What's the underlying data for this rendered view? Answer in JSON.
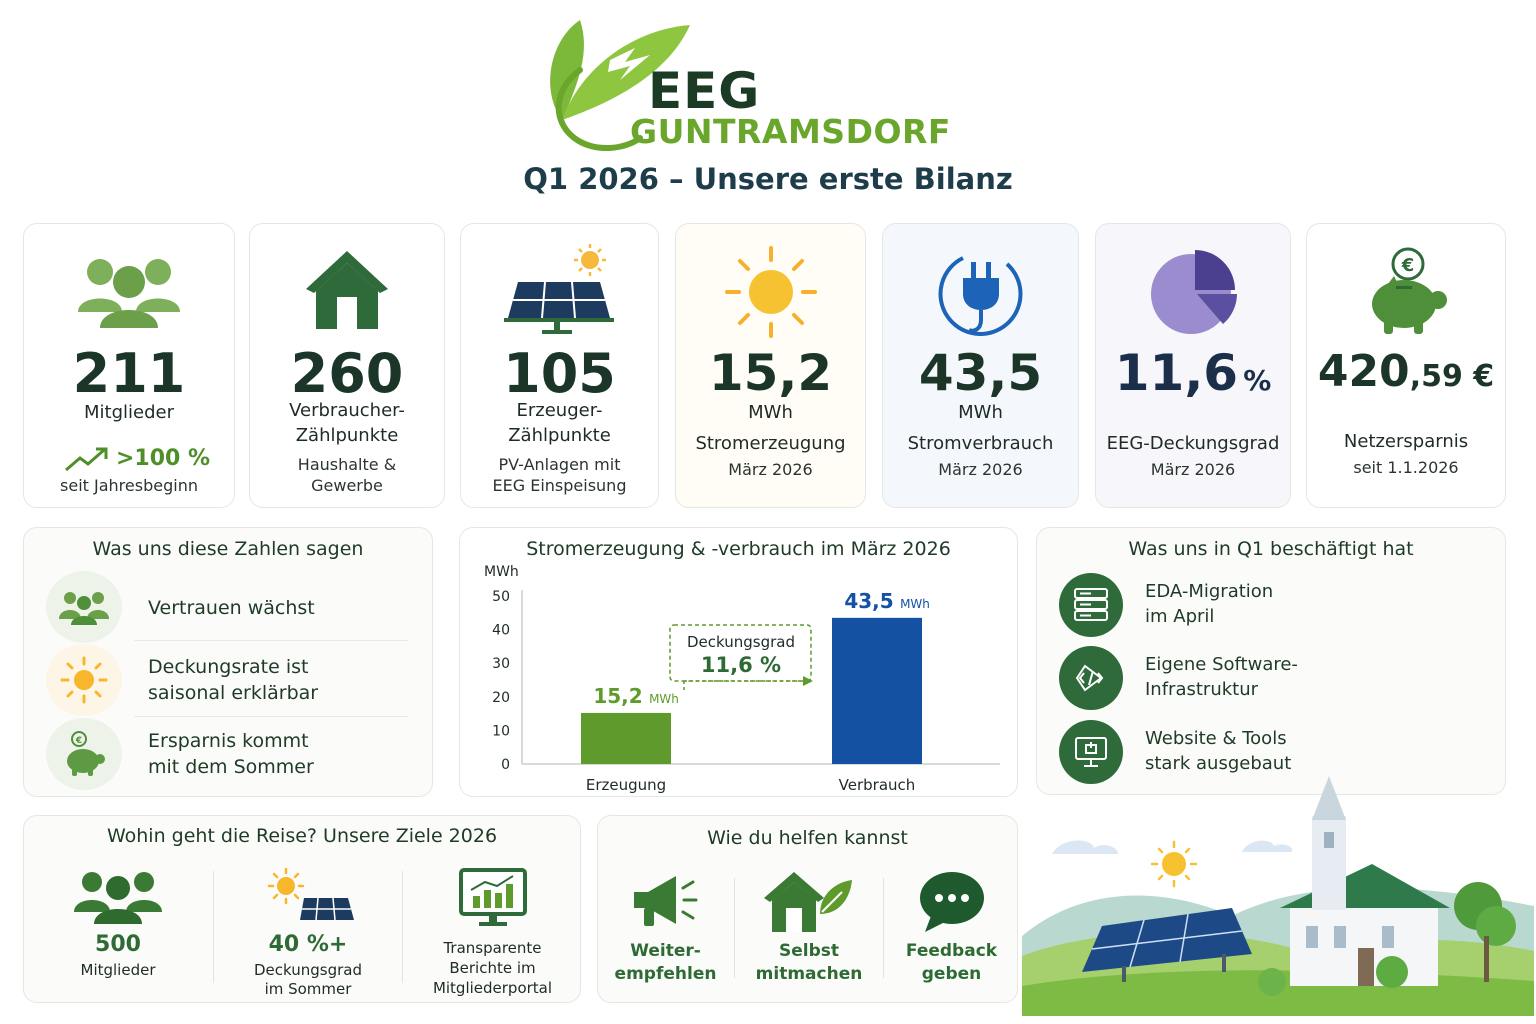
{
  "header": {
    "logo_line1": "EEG",
    "logo_line2": "GUNTRAMSDORF",
    "subtitle": "Q1 2026 – Unsere erste Bilanz"
  },
  "kpis": [
    {
      "icon": "people-icon",
      "value": "211",
      "label": "Mitglieder",
      "growth": ">100 %",
      "sub": "seit Jahresbeginn"
    },
    {
      "icon": "house-icon",
      "value": "260",
      "label_1": "Verbraucher-",
      "label_2": "Zählpunkte",
      "sub_1": "Haushalte &",
      "sub_2": "Gewerbe"
    },
    {
      "icon": "solar-panel-icon",
      "value": "105",
      "label_1": "Erzeuger-",
      "label_2": "Zählpunkte",
      "sub_1": "PV-Anlagen mit",
      "sub_2": "EEG Einspeisung"
    },
    {
      "icon": "sun-icon",
      "value": "15,2",
      "unit": "MWh",
      "label": "Stromerzeugung",
      "sub": "März 2026"
    },
    {
      "icon": "plug-icon",
      "value": "43,5",
      "unit": "MWh",
      "label": "Stromverbrauch",
      "sub": "März 2026"
    },
    {
      "icon": "pie-icon",
      "value": "11,6",
      "unit": "%",
      "label": "EEG-Deckungsgrad",
      "sub": "März 2026"
    },
    {
      "icon": "piggy-bank-icon",
      "value": "420",
      "decimals": ",59 €",
      "label": "Netzersparnis",
      "sub": "seit 1.1.2026"
    }
  ],
  "insights": {
    "title": "Was uns diese Zahlen sagen",
    "items": [
      {
        "icon": "people-icon",
        "line1": "Vertrauen wächst",
        "line2": ""
      },
      {
        "icon": "sun-icon",
        "line1": "Deckungsrate ist",
        "line2": "saisonal erklärbar"
      },
      {
        "icon": "piggy-bank-icon",
        "line1": "Ersparnis kommt",
        "line2": "mit dem Sommer"
      }
    ]
  },
  "chart": {
    "title": "Stromerzeugung &  -verbrauch im März 2026",
    "annotation_label": "Deckungsgrad",
    "annotation_value": "11,6 %",
    "bar_unit": "MWh",
    "bar1_label": "15,2",
    "bar2_label": "43,5",
    "colors": {
      "erzeugung": "#5e9a2c",
      "verbrauch": "#1451a3"
    }
  },
  "chart_data": {
    "type": "bar",
    "title": "Stromerzeugung &  -verbrauch im März 2026",
    "categories": [
      "Erzeugung",
      "Verbrauch"
    ],
    "values": [
      15.2,
      43.5
    ],
    "ylabel": "MWh",
    "ylim": [
      0,
      50
    ],
    "yticks": [
      "0",
      "10",
      "20",
      "30",
      "40",
      "50"
    ],
    "grid": false,
    "legend": "none"
  },
  "topics": {
    "title": "Was uns in Q1 beschäftigt hat",
    "items": [
      {
        "icon": "server-icon",
        "line1": "EDA-Migration",
        "line2": "im April"
      },
      {
        "icon": "code-icon",
        "line1": "Eigene Software-",
        "line2": "Infrastruktur"
      },
      {
        "icon": "monitor-icon",
        "line1": "Website & Tools",
        "line2": "stark ausgebaut"
      }
    ]
  },
  "goals": {
    "title": "Wohin geht die Reise? Unsere Ziele 2026",
    "items": [
      {
        "icon": "people-icon",
        "value": "500",
        "label_1": "Mitglieder",
        "label_2": "",
        "label_3": ""
      },
      {
        "icon": "solar-sun-icon",
        "value": "40 %+",
        "label_1": "Deckungsgrad",
        "label_2": "im Sommer",
        "label_3": ""
      },
      {
        "icon": "report-chart-icon",
        "value": "",
        "label_1": "Transparente",
        "label_2": "Berichte im",
        "label_3": "Mitgliederportal"
      }
    ]
  },
  "help": {
    "title": "Wie du helfen kannst",
    "items": [
      {
        "icon": "megaphone-icon",
        "line1": "Weiter-",
        "line2": "empfehlen"
      },
      {
        "icon": "house-leaf-icon",
        "line1": "Selbst",
        "line2": "mitmachen"
      },
      {
        "icon": "chat-bubble-icon",
        "line1": "Feedback",
        "line2": "geben"
      }
    ]
  }
}
